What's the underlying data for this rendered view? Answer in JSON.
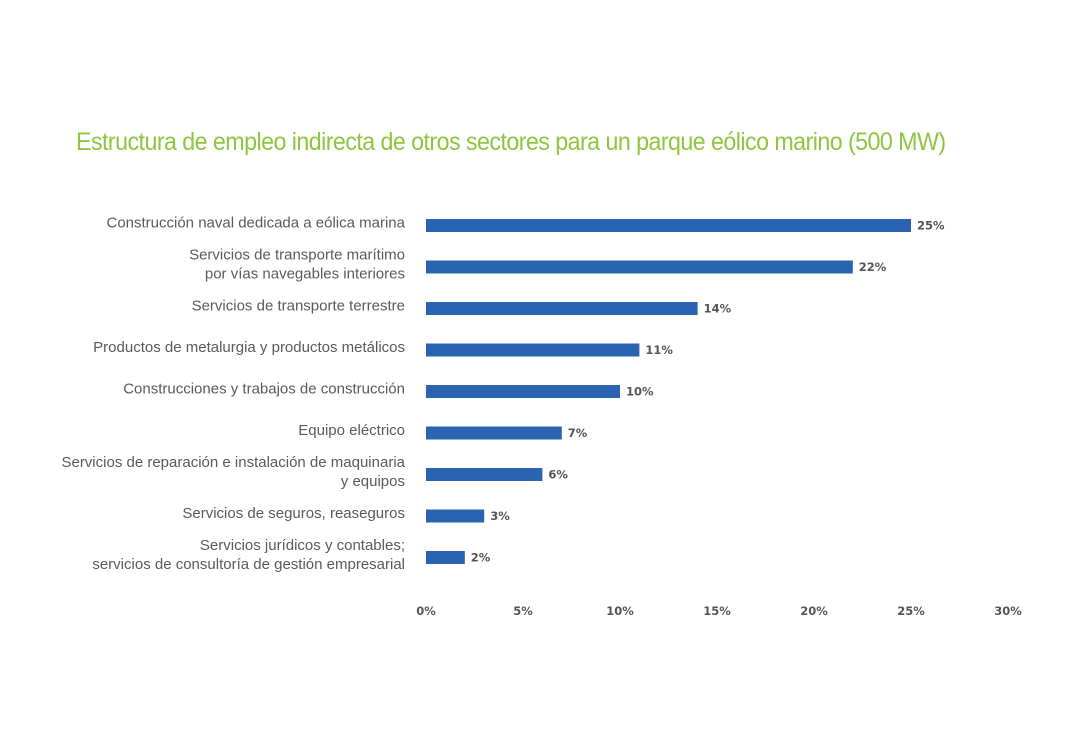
{
  "chart_data": {
    "type": "bar",
    "orientation": "horizontal",
    "title": "Estructura de empleo indirecta de otros sectores para un parque eólico marino (500 MW)",
    "title_color": "#8dc63f",
    "bar_color": "#2a64b0",
    "categories": [
      [
        "Construcción naval dedicada a eólica marina"
      ],
      [
        "Servicios de transporte marítimo",
        "por vías navegables interiores"
      ],
      [
        "Servicios de transporte terrestre"
      ],
      [
        "Productos de metalurgia y productos metálicos"
      ],
      [
        "Construcciones y trabajos de construcción"
      ],
      [
        "Equipo eléctrico"
      ],
      [
        "Servicios de reparación e instalación de maquinaria",
        "y equipos"
      ],
      [
        "Servicios de seguros, reaseguros"
      ],
      [
        "Servicios jurídicos y contables;",
        "servicios de consultoría de gestión empresarial"
      ]
    ],
    "values": [
      25,
      22,
      14,
      11,
      10,
      7,
      6,
      3,
      2
    ],
    "value_labels": [
      "25%",
      "22%",
      "14%",
      "11%",
      "10%",
      "7%",
      "6%",
      "3%",
      "2%"
    ],
    "xlim": [
      0,
      30
    ],
    "x_ticks": [
      0,
      5,
      10,
      15,
      20,
      25,
      30
    ],
    "x_tick_labels": [
      "0%",
      "5%",
      "10%",
      "15%",
      "20%",
      "25%",
      "30%"
    ],
    "grid": false,
    "legend": "none"
  }
}
